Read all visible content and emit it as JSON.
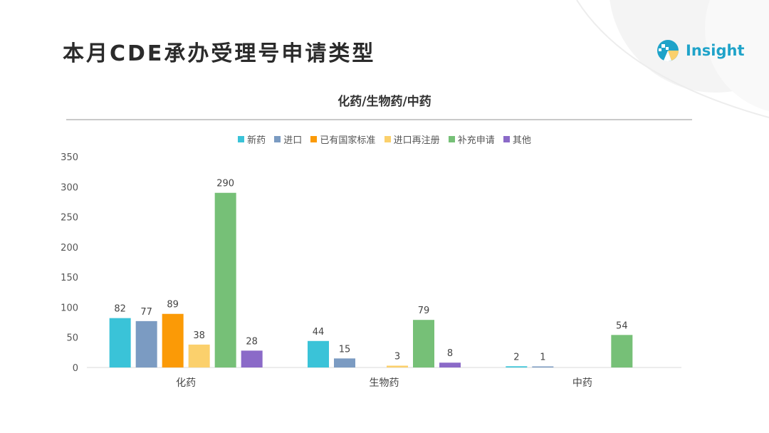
{
  "page": {
    "title": "本月CDE承办受理号申请类型",
    "logo_text": "Insight"
  },
  "chart_data": {
    "type": "bar",
    "title": "化药/生物药/中药",
    "xlabel": "",
    "ylabel": "",
    "ylim": [
      0,
      350
    ],
    "yticks": [
      0,
      50,
      100,
      150,
      200,
      250,
      300,
      350
    ],
    "grid": false,
    "legend_position": "top-center",
    "categories": [
      "化药",
      "生物药",
      "中药"
    ],
    "series": [
      {
        "name": "新药",
        "color": "#3ac3d8",
        "values": [
          82,
          44,
          2
        ]
      },
      {
        "name": "进口",
        "color": "#7b9bc2",
        "values": [
          77,
          15,
          1
        ]
      },
      {
        "name": "已有国家标准",
        "color": "#fb9a06",
        "values": [
          89,
          null,
          null
        ]
      },
      {
        "name": "进口再注册",
        "color": "#fbd06c",
        "values": [
          38,
          3,
          null
        ]
      },
      {
        "name": "补充申请",
        "color": "#76c077",
        "values": [
          290,
          79,
          54
        ]
      },
      {
        "name": "其他",
        "color": "#8b6ac8",
        "values": [
          28,
          8,
          null
        ]
      }
    ]
  }
}
